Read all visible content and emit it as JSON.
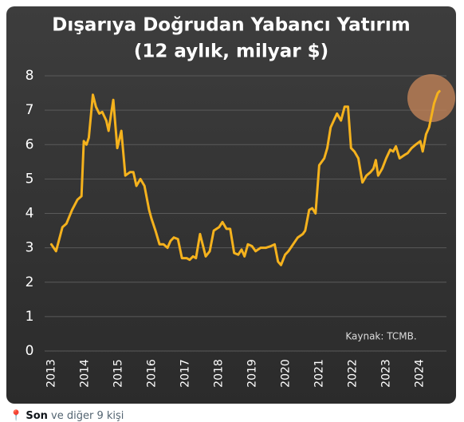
{
  "chart_data": {
    "type": "line",
    "title": "Dışarıya Doğrudan Yabancı Yatırım",
    "subtitle": "(12 aylık, milyar $)",
    "annotation": "Kaynak: TCMB.",
    "color": "#f5b21d",
    "grid": true,
    "x": [
      2013.0,
      2013.14,
      2013.33,
      2013.45,
      2013.62,
      2013.78,
      2013.9,
      2013.97,
      2014.05,
      2014.12,
      2014.24,
      2014.33,
      2014.43,
      2014.52,
      2014.64,
      2014.71,
      2014.85,
      2014.97,
      2015.09,
      2015.21,
      2015.35,
      2015.45,
      2015.54,
      2015.66,
      2015.78,
      2015.92,
      2015.99,
      2016.11,
      2016.23,
      2016.35,
      2016.47,
      2016.56,
      2016.66,
      2016.78,
      2016.9,
      2017.04,
      2017.13,
      2017.23,
      2017.32,
      2017.44,
      2017.61,
      2017.73,
      2017.85,
      2018.01,
      2018.11,
      2018.23,
      2018.34,
      2018.46,
      2018.58,
      2018.68,
      2018.77,
      2018.87,
      2018.99,
      2019.1,
      2019.25,
      2019.41,
      2019.56,
      2019.67,
      2019.77,
      2019.86,
      2019.98,
      2020.08,
      2020.22,
      2020.36,
      2020.51,
      2020.58,
      2020.7,
      2020.79,
      2020.89,
      2021.0,
      2021.15,
      2021.24,
      2021.34,
      2021.53,
      2021.65,
      2021.76,
      2021.86,
      2021.95,
      2022.05,
      2022.17,
      2022.29,
      2022.41,
      2022.53,
      2022.62,
      2022.69,
      2022.76,
      2022.88,
      2023.0,
      2023.12,
      2023.21,
      2023.29,
      2023.4,
      2023.55,
      2023.64,
      2023.76,
      2023.88,
      2024.02,
      2024.09,
      2024.19,
      2024.28,
      2024.43,
      2024.54,
      2024.59
    ],
    "values": [
      3.1,
      2.9,
      3.6,
      3.7,
      4.1,
      4.4,
      4.5,
      6.1,
      6.0,
      6.2,
      7.45,
      7.1,
      6.9,
      6.95,
      6.7,
      6.4,
      7.3,
      5.9,
      6.4,
      5.1,
      5.2,
      5.2,
      4.8,
      5.0,
      4.8,
      4.1,
      3.85,
      3.5,
      3.1,
      3.1,
      3.0,
      3.2,
      3.3,
      3.25,
      2.7,
      2.7,
      2.65,
      2.75,
      2.7,
      3.4,
      2.75,
      2.9,
      3.5,
      3.6,
      3.75,
      3.55,
      3.55,
      2.85,
      2.8,
      2.95,
      2.75,
      3.1,
      3.05,
      2.9,
      3.0,
      3.0,
      3.05,
      3.1,
      2.6,
      2.5,
      2.8,
      2.9,
      3.1,
      3.3,
      3.4,
      3.5,
      4.1,
      4.15,
      4.0,
      5.4,
      5.6,
      5.9,
      6.5,
      6.9,
      6.7,
      7.1,
      7.1,
      5.9,
      5.8,
      5.6,
      4.9,
      5.1,
      5.2,
      5.3,
      5.55,
      5.1,
      5.3,
      5.6,
      5.85,
      5.8,
      5.95,
      5.6,
      5.7,
      5.75,
      5.9,
      6.0,
      6.1,
      5.8,
      6.3,
      6.5,
      7.2,
      7.5,
      7.55
    ],
    "xlim": [
      2012.8,
      2024.8
    ],
    "xticks": [
      2013,
      2014,
      2015,
      2016,
      2017,
      2018,
      2019,
      2020,
      2021,
      2022,
      2023,
      2024
    ],
    "ylim": [
      0,
      8
    ],
    "yticks": [
      0,
      1,
      2,
      3,
      4,
      5,
      6,
      7,
      8
    ]
  },
  "footer": {
    "bold": "Son",
    "rest": "ve diğer 9 kişi"
  }
}
